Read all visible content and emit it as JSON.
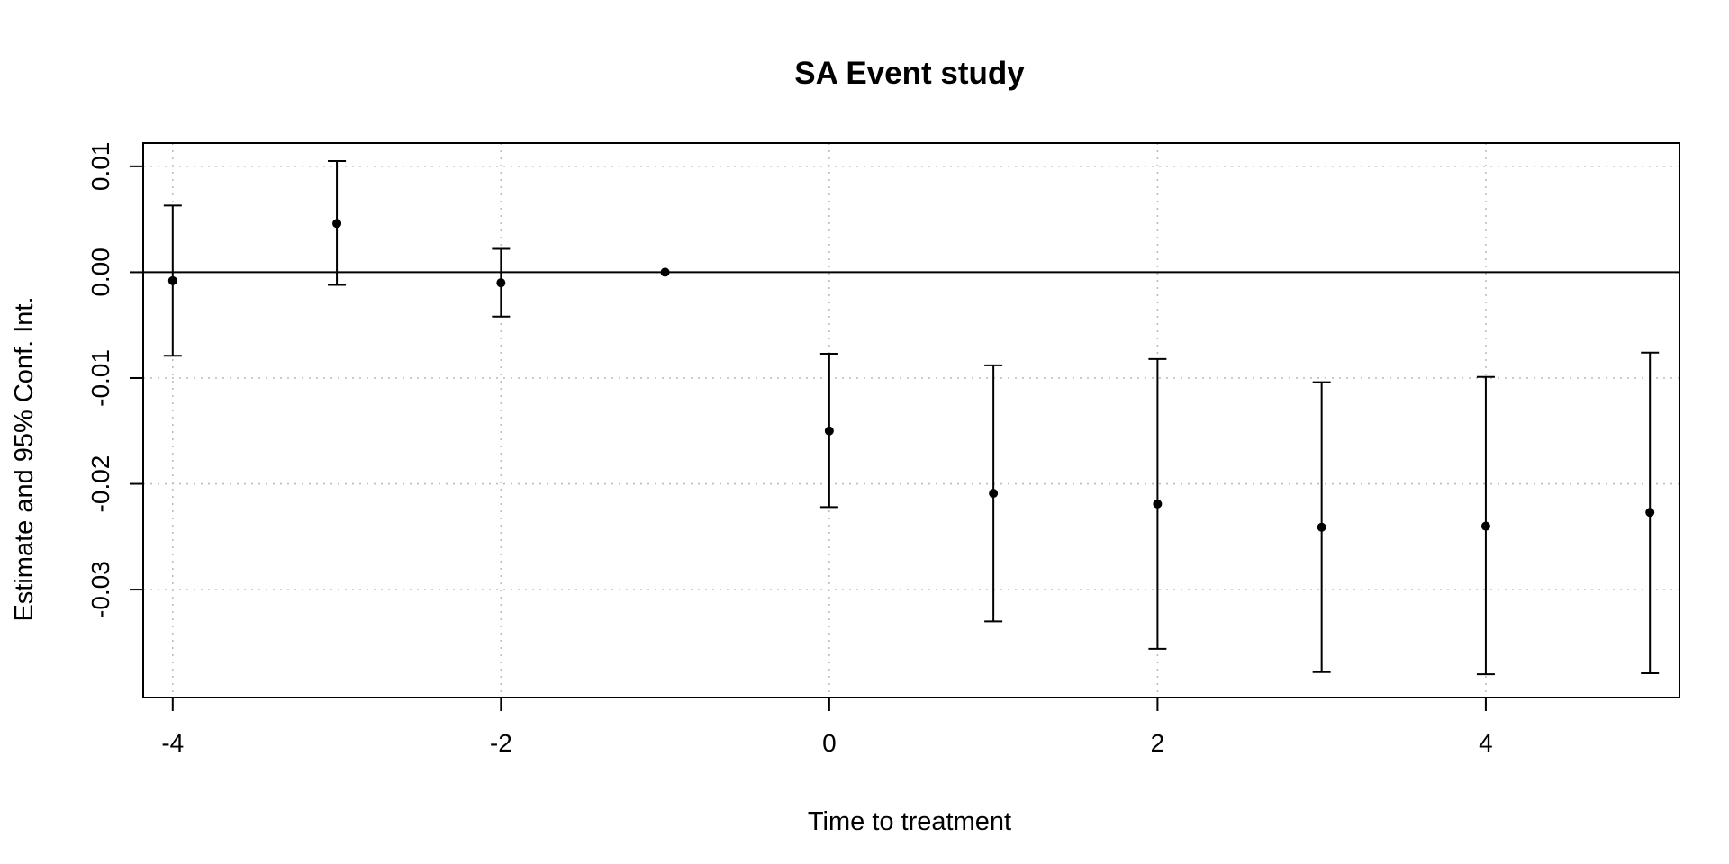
{
  "chart_data": {
    "type": "scatter",
    "title": "SA Event study",
    "xlabel": "Time to treatment",
    "ylabel": "Estimate and 95% Conf. Int.",
    "xlim": [
      -4.18,
      5.18
    ],
    "ylim": [
      -0.0402,
      0.0122
    ],
    "x_ticks": [
      -4,
      -2,
      0,
      2,
      4
    ],
    "x_tick_labels": [
      "-4",
      "-2",
      "0",
      "2",
      "4"
    ],
    "y_ticks": [
      0.01,
      0.0,
      -0.01,
      -0.02,
      -0.03
    ],
    "y_tick_labels": [
      "0.01",
      "0.00",
      "-0.01",
      "-0.02",
      "-0.03"
    ],
    "x_grid": [
      -4,
      -2,
      0,
      2,
      4
    ],
    "y_grid": [
      0.01,
      -0.01,
      -0.02,
      -0.03
    ],
    "reference_line_y": 0,
    "grid": true,
    "points": [
      {
        "x": -4,
        "estimate": -0.0008,
        "ci_low": -0.0079,
        "ci_high": 0.0063
      },
      {
        "x": -3,
        "estimate": 0.0046,
        "ci_low": -0.0012,
        "ci_high": 0.0105
      },
      {
        "x": -2,
        "estimate": -0.001,
        "ci_low": -0.0042,
        "ci_high": 0.0022
      },
      {
        "x": -1,
        "estimate": 0.0,
        "ci_low": null,
        "ci_high": null
      },
      {
        "x": 0,
        "estimate": -0.015,
        "ci_low": -0.0222,
        "ci_high": -0.0077
      },
      {
        "x": 1,
        "estimate": -0.0209,
        "ci_low": -0.033,
        "ci_high": -0.0088
      },
      {
        "x": 2,
        "estimate": -0.0219,
        "ci_low": -0.0356,
        "ci_high": -0.0082
      },
      {
        "x": 3,
        "estimate": -0.0241,
        "ci_low": -0.0378,
        "ci_high": -0.0104
      },
      {
        "x": 4,
        "estimate": -0.024,
        "ci_low": -0.038,
        "ci_high": -0.0099
      },
      {
        "x": 5,
        "estimate": -0.0227,
        "ci_low": -0.0379,
        "ci_high": -0.0076
      }
    ]
  }
}
